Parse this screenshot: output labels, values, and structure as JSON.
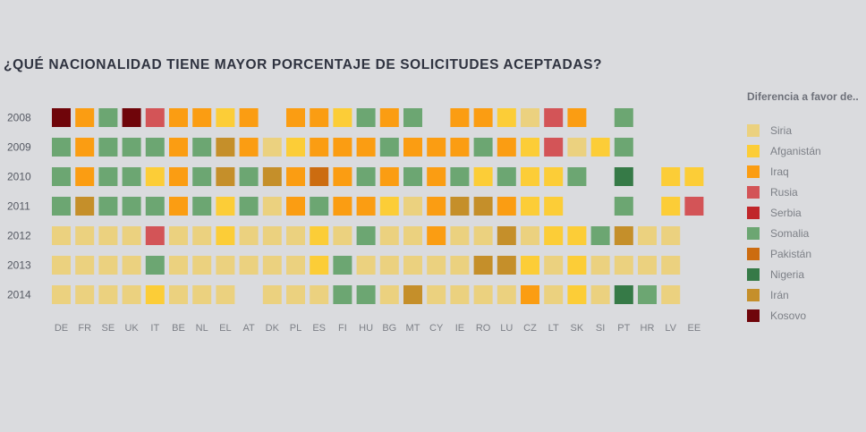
{
  "title": "¿QUÉ NACIONALIDAD TIENE MAYOR PORCENTAJE DE SOLICITUDES ACEPTADAS?",
  "legend": {
    "title": "Diferencia a favor de..",
    "items": [
      {
        "key": "SY",
        "label": "Siria",
        "color": "#ebd17f"
      },
      {
        "key": "AF",
        "label": "Afganistán",
        "color": "#fccd37"
      },
      {
        "key": "IQ",
        "label": "Iraq",
        "color": "#fb9d12"
      },
      {
        "key": "RU",
        "label": "Rusia",
        "color": "#d35457"
      },
      {
        "key": "RS",
        "label": "Serbia",
        "color": "#c0262a"
      },
      {
        "key": "SO",
        "label": "Somalia",
        "color": "#6ca672"
      },
      {
        "key": "PK",
        "label": "Pakistán",
        "color": "#cc6c10"
      },
      {
        "key": "NG",
        "label": "Nigeria",
        "color": "#367a47"
      },
      {
        "key": "IR",
        "label": "Irán",
        "color": "#c58f2a"
      },
      {
        "key": "XK",
        "label": "Kosovo",
        "color": "#6f050a"
      }
    ]
  },
  "chart_data": {
    "type": "heatmap",
    "title": "¿QUÉ NACIONALIDAD TIENE MAYOR PORCENTAJE DE SOLICITUDES ACEPTADAS?",
    "legend_title": "Diferencia a favor de..",
    "legend_position": "right",
    "years": [
      "2008",
      "2009",
      "2010",
      "2011",
      "2012",
      "2013",
      "2014"
    ],
    "countries": [
      "DE",
      "FR",
      "SE",
      "UK",
      "IT",
      "BE",
      "NL",
      "EL",
      "AT",
      "DK",
      "PL",
      "ES",
      "FI",
      "HU",
      "BG",
      "MT",
      "CY",
      "IE",
      "RO",
      "LU",
      "CZ",
      "LT",
      "SK",
      "SI",
      "PT",
      "HR",
      "LV",
      "EE"
    ],
    "rows": [
      [
        "XK",
        "IQ",
        "SO",
        "XK",
        "RU",
        "IQ",
        "IQ",
        "AF",
        "IQ",
        null,
        "IQ",
        "IQ",
        "AF",
        "SO",
        "IQ",
        "SO",
        null,
        "IQ",
        "IQ",
        "AF",
        "SY",
        "RU",
        "IQ",
        null,
        "SO",
        null,
        null,
        null
      ],
      [
        "SO",
        "IQ",
        "SO",
        "SO",
        "SO",
        "IQ",
        "SO",
        "IR",
        "IQ",
        "SY",
        "AF",
        "IQ",
        "IQ",
        "IQ",
        "SO",
        "IQ",
        "IQ",
        "IQ",
        "SO",
        "IQ",
        "AF",
        "RU",
        "SY",
        "AF",
        "SO",
        null,
        null,
        null
      ],
      [
        "SO",
        "IQ",
        "SO",
        "SO",
        "AF",
        "IQ",
        "SO",
        "IR",
        "SO",
        "IR",
        "IQ",
        "PK",
        "IQ",
        "SO",
        "IQ",
        "SO",
        "IQ",
        "SO",
        "AF",
        "SO",
        "AF",
        "AF",
        "SO",
        null,
        "NG",
        null,
        "AF",
        "AF"
      ],
      [
        "SO",
        "IR",
        "SO",
        "SO",
        "SO",
        "IQ",
        "SO",
        "AF",
        "SO",
        "SY",
        "IQ",
        "SO",
        "IQ",
        "IQ",
        "AF",
        "SY",
        "IQ",
        "IR",
        "IR",
        "IQ",
        "AF",
        "AF",
        null,
        null,
        "SO",
        null,
        "AF",
        "RU"
      ],
      [
        "SY",
        "SY",
        "SY",
        "SY",
        "RU",
        "SY",
        "SY",
        "AF",
        "SY",
        "SY",
        "SY",
        "AF",
        "SY",
        "SO",
        "SY",
        "SY",
        "IQ",
        "SY",
        "SY",
        "IR",
        "SY",
        "AF",
        "AF",
        "SO",
        "IR",
        "SY",
        "SY",
        null
      ],
      [
        "SY",
        "SY",
        "SY",
        "SY",
        "SO",
        "SY",
        "SY",
        "SY",
        "SY",
        "SY",
        "SY",
        "AF",
        "SO",
        "SY",
        "SY",
        "SY",
        "SY",
        "SY",
        "IR",
        "IR",
        "AF",
        "SY",
        "AF",
        "SY",
        "SY",
        "SY",
        "SY",
        null
      ],
      [
        "SY",
        "SY",
        "SY",
        "SY",
        "AF",
        "SY",
        "SY",
        "SY",
        null,
        "SY",
        "SY",
        "SY",
        "SO",
        "SO",
        "SY",
        "IR",
        "SY",
        "SY",
        "SY",
        "SY",
        "IQ",
        "SY",
        "AF",
        "SY",
        "NG",
        "SO",
        "SY",
        null
      ]
    ]
  }
}
